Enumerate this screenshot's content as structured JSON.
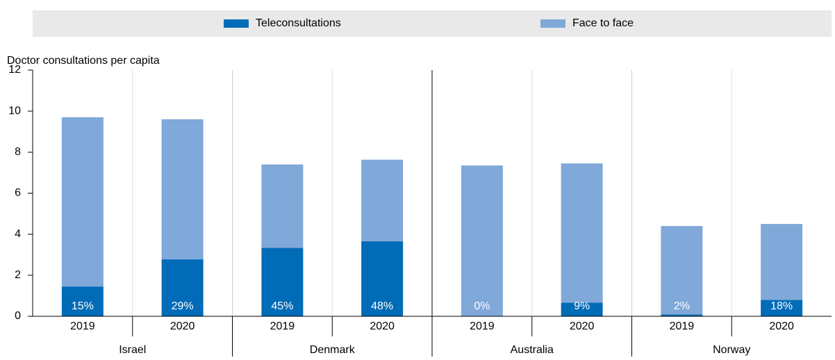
{
  "chart_data": {
    "type": "stacked-bar",
    "y_label": "Doctor consultations per capita",
    "groups": [
      {
        "name": "Israel",
        "categories": [
          "2019",
          "2020"
        ]
      },
      {
        "name": "Denmark",
        "categories": [
          "2019",
          "2020"
        ]
      },
      {
        "name": "Australia",
        "categories": [
          "2019",
          "2020"
        ]
      },
      {
        "name": "Norway",
        "categories": [
          "2019",
          "2020"
        ]
      }
    ],
    "series": [
      {
        "name": "Teleconsultations",
        "color": "#006bb6",
        "values": [
          1.45,
          2.78,
          3.33,
          3.65,
          0,
          0.66,
          0.09,
          0.8
        ],
        "shares": [
          15,
          29,
          45,
          48,
          0,
          9,
          2,
          18
        ],
        "share_labels": [
          "15%",
          "29%",
          "45%",
          "48%",
          "0%",
          "9%",
          "2%",
          "18%"
        ]
      },
      {
        "name": "Face to face",
        "color": "#80a8d9",
        "values": [
          8.25,
          6.82,
          4.07,
          3.98,
          7.35,
          6.79,
          4.31,
          3.7
        ]
      }
    ],
    "ylim": [
      0,
      12
    ],
    "yticks": [
      0,
      2,
      4,
      6,
      8,
      10,
      12
    ]
  }
}
